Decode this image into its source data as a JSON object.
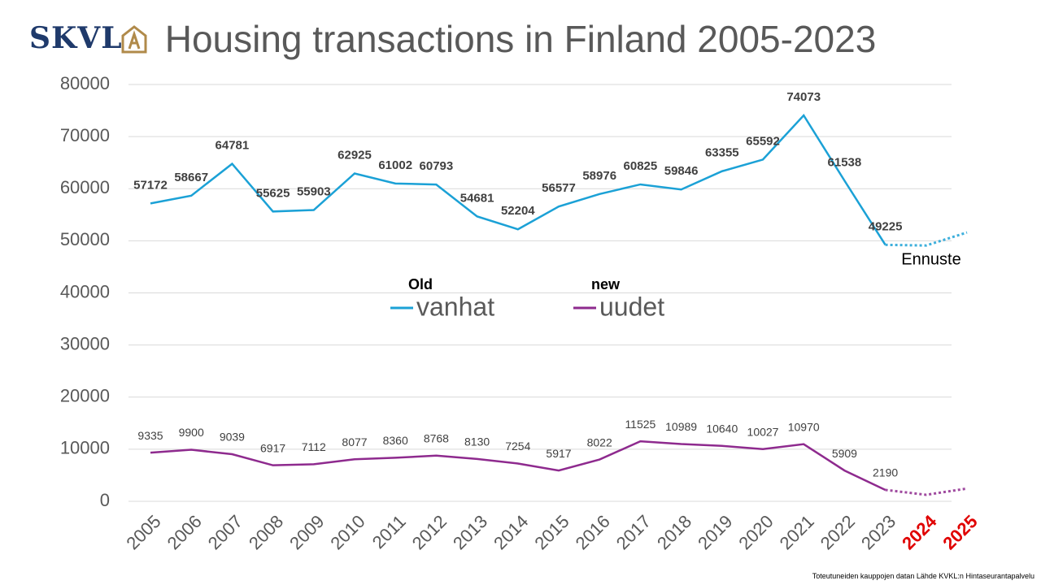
{
  "logo": "SKVL",
  "source": "Toteutuneiden kauppojen datan Lähde KVKL:n Hintaseurantapalvelu",
  "chart_data": {
    "type": "line",
    "title": "Housing transactions in Finland 2005-2023",
    "categories": [
      "2005",
      "2006",
      "2007",
      "2008",
      "2009",
      "2010",
      "2011",
      "2012",
      "2013",
      "2014",
      "2015",
      "2016",
      "2017",
      "2018",
      "2019",
      "2020",
      "2021",
      "2022",
      "2023",
      "2024",
      "2025"
    ],
    "series": [
      {
        "name": "vanhat",
        "translation": "Old",
        "color": "#1ba1d6",
        "values": [
          57172,
          58667,
          64781,
          55625,
          55903,
          62925,
          61002,
          60793,
          54681,
          52204,
          56577,
          58976,
          60825,
          59846,
          63355,
          65592,
          74073,
          61538,
          49225,
          49100,
          51600
        ]
      },
      {
        "name": "uudet",
        "translation": "new",
        "color": "#8e2a8e",
        "values": [
          9335,
          9900,
          9039,
          6917,
          7112,
          8077,
          8360,
          8768,
          8130,
          7254,
          5917,
          8022,
          11525,
          10989,
          10640,
          10027,
          10970,
          5909,
          2190,
          1250,
          2450
        ]
      }
    ],
    "forecast": {
      "from": "2023",
      "label": "Ennuste",
      "color": "#e00000"
    },
    "ylim": [
      0,
      80000
    ],
    "yticks": [
      0,
      10000,
      20000,
      30000,
      40000,
      50000,
      60000,
      70000,
      80000
    ],
    "grid": true
  }
}
